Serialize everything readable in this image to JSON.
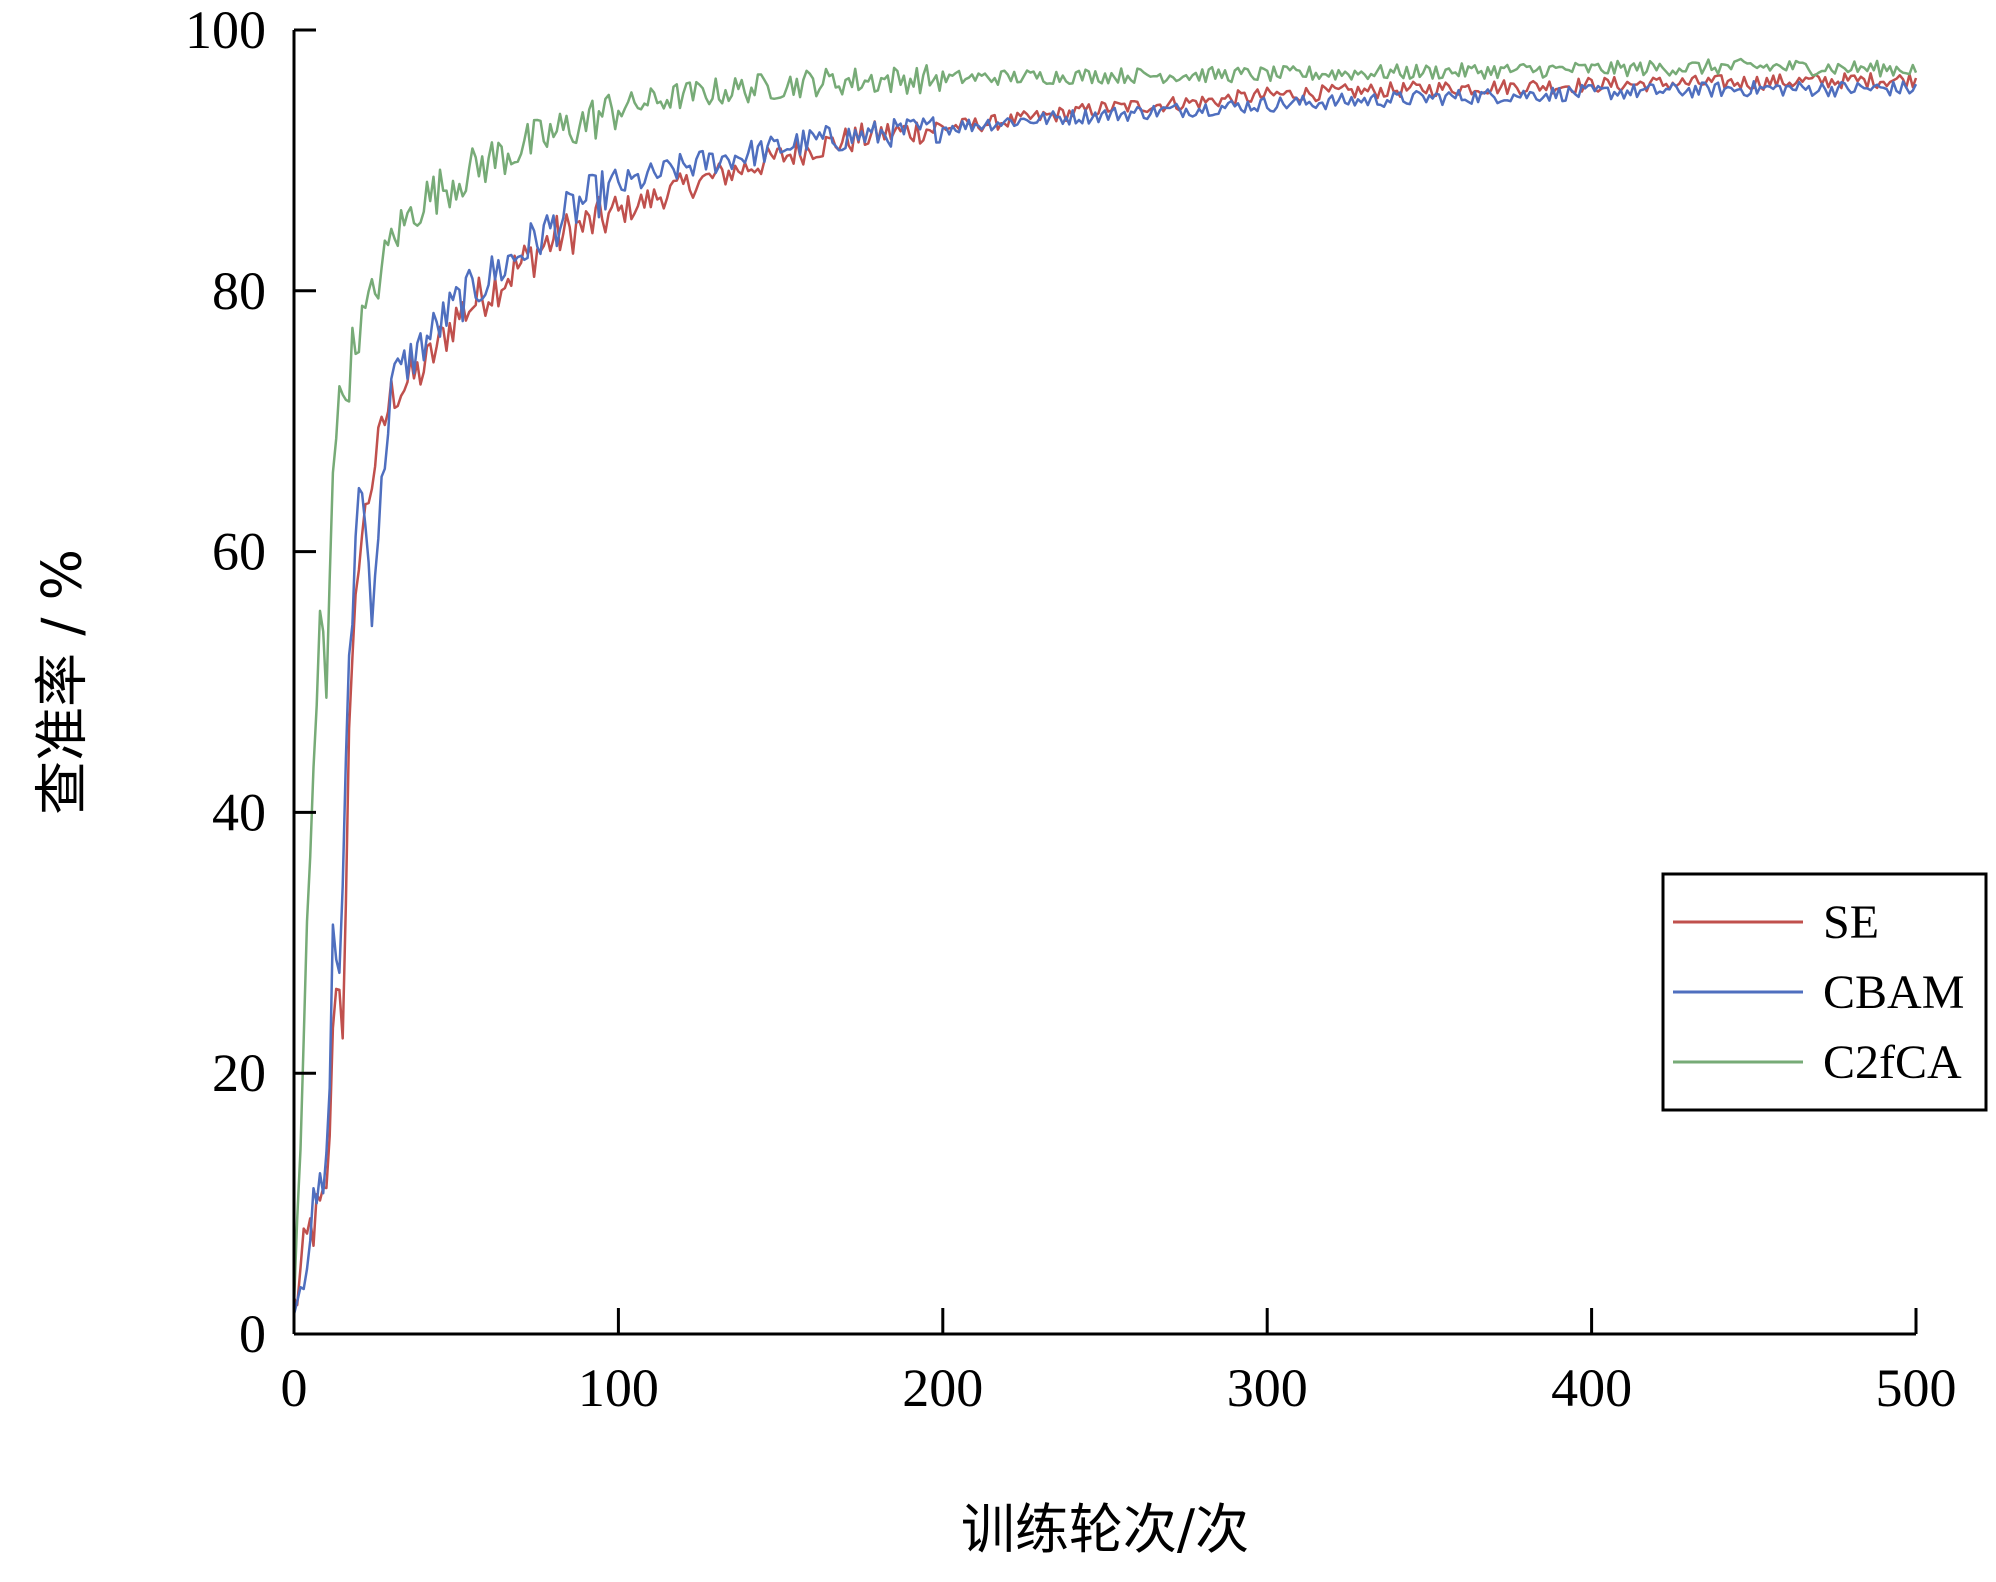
{
  "chart_data": {
    "type": "line",
    "xlabel": "训练轮次/次",
    "ylabel": "查准率 / %",
    "xlim": [
      0,
      500
    ],
    "ylim": [
      0,
      100
    ],
    "xticks": [
      0,
      100,
      200,
      300,
      400,
      500
    ],
    "yticks": [
      0,
      20,
      40,
      60,
      80,
      100
    ],
    "grid": false,
    "legend_position": "bottom-right",
    "series": [
      {
        "name": "SE",
        "color": "#c0504d",
        "x": [
          0,
          5,
          10,
          13,
          15,
          17,
          20,
          25,
          30,
          40,
          50,
          60,
          70,
          80,
          90,
          100,
          120,
          140,
          160,
          180,
          200,
          220,
          250,
          280,
          300,
          350,
          400,
          450,
          500
        ],
        "values": [
          2,
          8,
          10,
          28,
          24,
          45,
          60,
          67,
          72,
          74,
          78,
          80,
          82,
          84,
          85,
          86,
          88,
          89.5,
          91,
          92,
          92.5,
          93,
          94,
          94.5,
          95,
          95.5,
          95.8,
          96,
          96.2
        ]
      },
      {
        "name": "CBAM",
        "color": "#4f6fbf",
        "x": [
          0,
          5,
          10,
          12,
          14,
          17,
          20,
          22,
          24,
          30,
          40,
          50,
          60,
          70,
          80,
          90,
          100,
          120,
          140,
          160,
          180,
          200,
          220,
          250,
          280,
          300,
          350,
          400,
          450,
          500
        ],
        "values": [
          2,
          8,
          12,
          30,
          28,
          50,
          66,
          62,
          56,
          73,
          76,
          79,
          81,
          83,
          85,
          87,
          88,
          89.5,
          90.5,
          91.5,
          92,
          92.5,
          93,
          93.5,
          94,
          94.3,
          94.8,
          95.2,
          95.5,
          95.5
        ]
      },
      {
        "name": "C2fCA",
        "color": "#77ab77",
        "x": [
          0,
          2,
          4,
          6,
          8,
          10,
          12,
          15,
          20,
          25,
          30,
          40,
          50,
          60,
          70,
          80,
          90,
          100,
          120,
          140,
          160,
          200,
          250,
          300,
          350,
          400,
          450,
          500
        ],
        "values": [
          2,
          15,
          30,
          42,
          55,
          50,
          68,
          72,
          77,
          80,
          84,
          87,
          88.5,
          90,
          91,
          92,
          93,
          94,
          95,
          95.5,
          96,
          96.3,
          96.5,
          96.6,
          96.8,
          97,
          97.2,
          97
        ]
      }
    ]
  }
}
